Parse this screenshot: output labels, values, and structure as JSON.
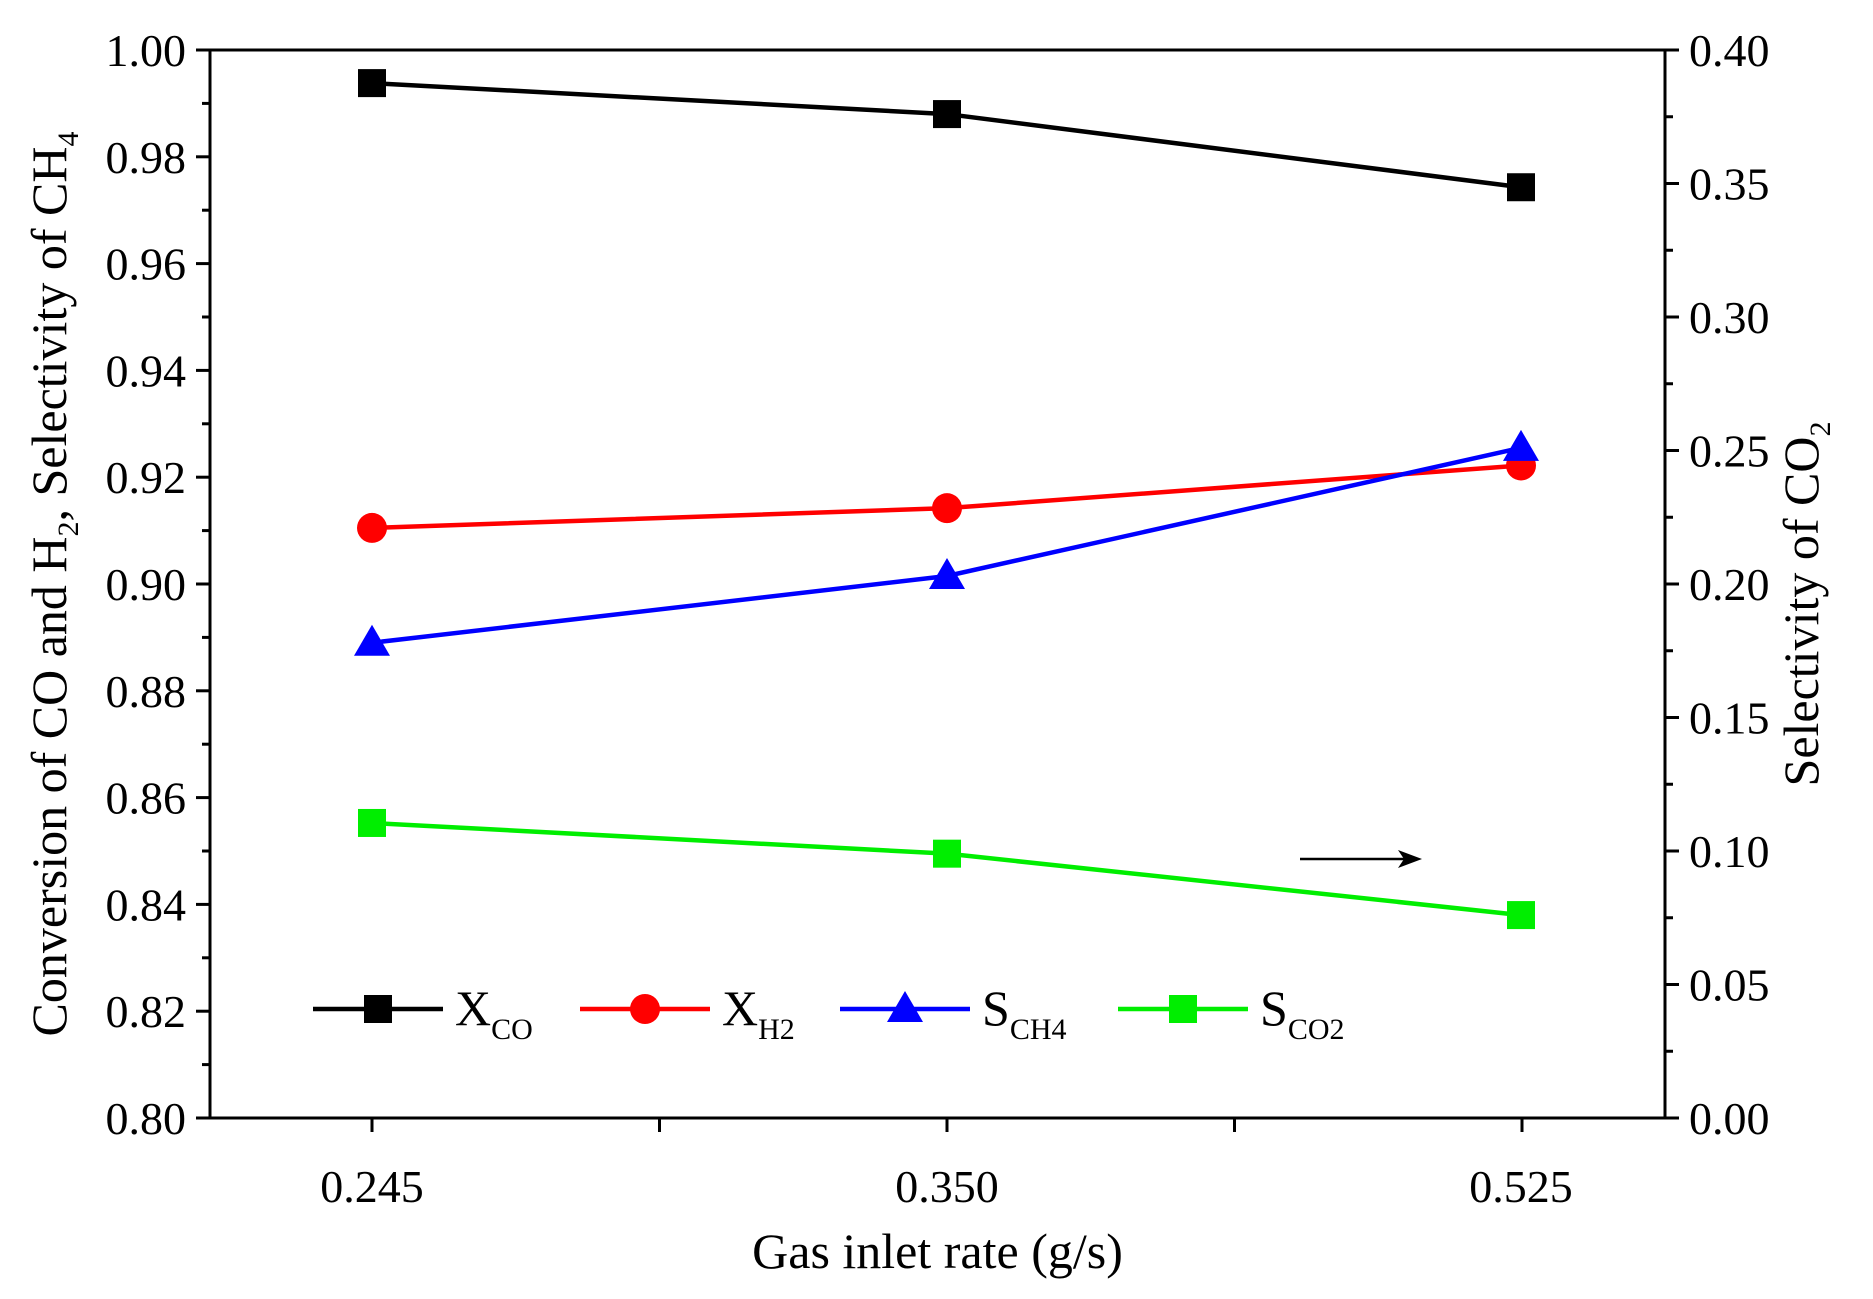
{
  "chart_data": {
    "type": "line",
    "title": "",
    "xlabel": "Gas inlet rate (g/s)",
    "categories": [
      "0.245",
      "0.350",
      "0.525"
    ],
    "y_left": {
      "label_parts": [
        "Conversion of CO and H",
        "2",
        ", Selectivity of CH",
        "4"
      ],
      "ylim": [
        0.8,
        1.0
      ],
      "tick_labels": [
        "0.80",
        "0.82",
        "0.84",
        "0.86",
        "0.88",
        "0.90",
        "0.92",
        "0.94",
        "0.96",
        "0.98",
        "1.00"
      ]
    },
    "y_right": {
      "label_parts": [
        "Selectivity of CO",
        "2"
      ],
      "ylim": [
        0.0,
        0.4
      ],
      "tick_labels": [
        "0.00",
        "0.05",
        "0.10",
        "0.15",
        "0.20",
        "0.25",
        "0.30",
        "0.35",
        "0.40"
      ]
    },
    "series": [
      {
        "name": "X_CO",
        "label_main": "X",
        "label_sub": "CO",
        "axis": "left",
        "color": "#000000",
        "marker": "square",
        "values": [
          0.9938,
          0.988,
          0.9743
        ]
      },
      {
        "name": "X_H2",
        "label_main": "X",
        "label_sub": "H2",
        "axis": "left",
        "color": "#ff0000",
        "marker": "circle",
        "values": [
          0.9105,
          0.9142,
          0.9222
        ]
      },
      {
        "name": "S_CH4",
        "label_main": "S",
        "label_sub": "CH4",
        "axis": "left",
        "color": "#0000ff",
        "marker": "triangle",
        "values": [
          0.889,
          0.9015,
          0.9255
        ]
      },
      {
        "name": "S_CO2",
        "label_main": "S",
        "label_sub": "CO2",
        "axis": "right",
        "color": "#00ee00",
        "marker": "square",
        "values": [
          0.1105,
          0.099,
          0.076
        ]
      }
    ],
    "annotation": "arrow pointing right toward right axis (S_CO2 uses right axis)",
    "legend_position": "bottom-left inside plot"
  }
}
